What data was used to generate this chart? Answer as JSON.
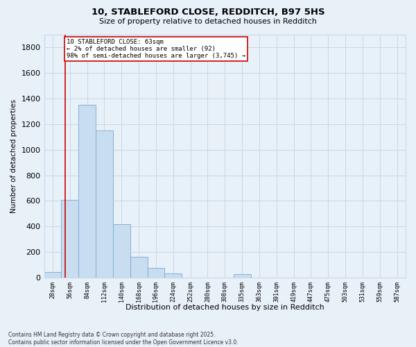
{
  "title": "10, STABLEFORD CLOSE, REDDITCH, B97 5HS",
  "subtitle": "Size of property relative to detached houses in Redditch",
  "xlabel": "Distribution of detached houses by size in Redditch",
  "ylabel": "Number of detached properties",
  "footer_line1": "Contains HM Land Registry data © Crown copyright and database right 2025.",
  "footer_line2": "Contains public sector information licensed under the Open Government Licence v3.0.",
  "bin_labels": [
    "28sqm",
    "56sqm",
    "84sqm",
    "112sqm",
    "140sqm",
    "168sqm",
    "196sqm",
    "224sqm",
    "252sqm",
    "280sqm",
    "308sqm",
    "335sqm",
    "363sqm",
    "391sqm",
    "419sqm",
    "447sqm",
    "475sqm",
    "503sqm",
    "531sqm",
    "559sqm",
    "587sqm"
  ],
  "bar_values": [
    40,
    610,
    1350,
    1150,
    420,
    160,
    75,
    30,
    0,
    0,
    0,
    28,
    0,
    0,
    0,
    0,
    0,
    0,
    0,
    0,
    0
  ],
  "bar_color": "#c8ddf0",
  "bar_edge_color": "#7aaad0",
  "ylim": [
    0,
    1900
  ],
  "yticks": [
    0,
    200,
    400,
    600,
    800,
    1000,
    1200,
    1400,
    1600,
    1800
  ],
  "property_line_x": 0.72,
  "property_line_color": "#cc0000",
  "annotation_text": "10 STABLEFORD CLOSE: 63sqm\n← 2% of detached houses are smaller (92)\n98% of semi-detached houses are larger (3,745) →",
  "annotation_box_facecolor": "#ffffff",
  "annotation_box_edgecolor": "#cc0000",
  "grid_color": "#c8d8e8",
  "background_color": "#e8f0f8"
}
